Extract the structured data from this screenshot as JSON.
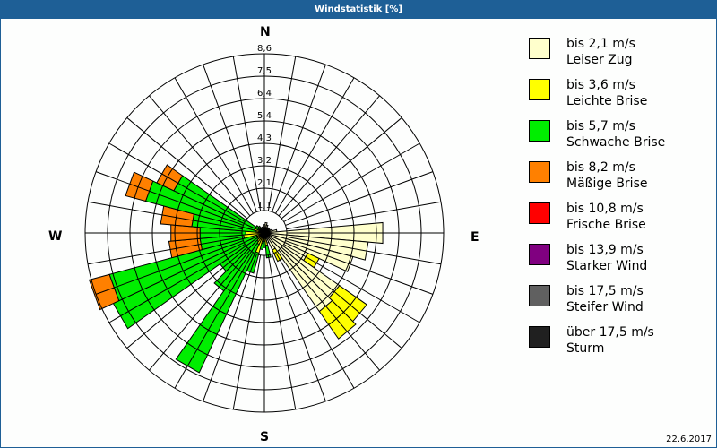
{
  "title": "Windstatistik [%]",
  "date": "22.6.2017",
  "compass": {
    "n": "N",
    "e": "E",
    "s": "S",
    "w": "W"
  },
  "legend": [
    {
      "range": "bis 2,1 m/s",
      "name": "Leiser Zug",
      "color": "#ffffcc"
    },
    {
      "range": "bis 3,6 m/s",
      "name": "Leichte Brise",
      "color": "#ffff00"
    },
    {
      "range": "bis 5,7 m/s",
      "name": "Schwache Brise",
      "color": "#00ee00"
    },
    {
      "range": "bis 8,2 m/s",
      "name": "Mäßige Brise",
      "color": "#ff8000"
    },
    {
      "range": "bis 10,8 m/s",
      "name": "Frische Brise",
      "color": "#ff0000"
    },
    {
      "range": "bis 13,9 m/s",
      "name": "Starker Wind",
      "color": "#800080"
    },
    {
      "range": "bis 17,5 m/s",
      "name": "Steifer Wind",
      "color": "#606060"
    },
    {
      "range": "über 17,5 m/s",
      "name": "Sturm",
      "color": "#202020"
    }
  ],
  "chart_data": {
    "type": "wind-rose",
    "title": "Windstatistik [%]",
    "ring_labels": [
      "1,1",
      "2,1",
      "3,2",
      "4,3",
      "5,4",
      "6,4",
      "7,5",
      "8,6"
    ],
    "rmax": 8.6,
    "sector_width_deg": 10,
    "series_names": [
      "Leiser Zug",
      "Leichte Brise",
      "Schwache Brise",
      "Mäßige Brise"
    ],
    "sectors": [
      {
        "dir": 10,
        "values": [
          0.5,
          0,
          0,
          0
        ]
      },
      {
        "dir": 20,
        "values": [
          0.4,
          0,
          0,
          0
        ]
      },
      {
        "dir": 30,
        "values": [
          0.3,
          0,
          0,
          0
        ]
      },
      {
        "dir": 40,
        "values": [
          0.3,
          0,
          0,
          0
        ]
      },
      {
        "dir": 50,
        "values": [
          0.3,
          0,
          0,
          0
        ]
      },
      {
        "dir": 60,
        "values": [
          0.3,
          0,
          0,
          0
        ]
      },
      {
        "dir": 70,
        "values": [
          0.4,
          0,
          0,
          0
        ]
      },
      {
        "dir": 80,
        "values": [
          0.6,
          0,
          0,
          0
        ]
      },
      {
        "dir": 90,
        "values": [
          5.7,
          0,
          0,
          0
        ]
      },
      {
        "dir": 100,
        "values": [
          5.0,
          0,
          0,
          0
        ]
      },
      {
        "dir": 110,
        "values": [
          4.4,
          0,
          0,
          0
        ]
      },
      {
        "dir": 120,
        "values": [
          2.3,
          0.6,
          0,
          0
        ]
      },
      {
        "dir": 130,
        "values": [
          4.4,
          1.6,
          0,
          0
        ]
      },
      {
        "dir": 140,
        "values": [
          4.6,
          1.6,
          0,
          0
        ]
      },
      {
        "dir": 150,
        "values": [
          0.9,
          0.6,
          0,
          0
        ]
      },
      {
        "dir": 160,
        "values": [
          0.5,
          0,
          0,
          0
        ]
      },
      {
        "dir": 170,
        "values": [
          0.3,
          0.3,
          0.6,
          0
        ]
      },
      {
        "dir": 180,
        "values": [
          0.2,
          0.2,
          0.3,
          0
        ]
      },
      {
        "dir": 190,
        "values": [
          0.2,
          0.3,
          0.3,
          0
        ]
      },
      {
        "dir": 200,
        "values": [
          0.1,
          0.9,
          1.0,
          0
        ]
      },
      {
        "dir": 210,
        "values": [
          0.1,
          0.5,
          6.8,
          0
        ]
      },
      {
        "dir": 220,
        "values": [
          0.1,
          0.4,
          2.9,
          0
        ]
      },
      {
        "dir": 230,
        "values": [
          0.1,
          0.3,
          2.2,
          0
        ]
      },
      {
        "dir": 240,
        "values": [
          0.1,
          0.3,
          7.6,
          0
        ]
      },
      {
        "dir": 250,
        "values": [
          0.1,
          0.3,
          7.3,
          1.0
        ]
      },
      {
        "dir": 260,
        "values": [
          0.2,
          0.8,
          2.1,
          1.5
        ]
      },
      {
        "dir": 270,
        "values": [
          0.1,
          0.8,
          2.2,
          1.4
        ]
      },
      {
        "dir": 280,
        "values": [
          0.1,
          0.3,
          3.1,
          1.5
        ]
      },
      {
        "dir": 290,
        "values": [
          0.2,
          0.3,
          5.4,
          1.0
        ]
      },
      {
        "dir": 300,
        "values": [
          0.1,
          0.2,
          4.5,
          0.9
        ]
      },
      {
        "dir": 310,
        "values": [
          0.1,
          0.1,
          0.3,
          0
        ]
      },
      {
        "dir": 320,
        "values": [
          0.1,
          0.1,
          0.2,
          0
        ]
      },
      {
        "dir": 330,
        "values": [
          0.2,
          0,
          0,
          0
        ]
      },
      {
        "dir": 340,
        "values": [
          0.3,
          0,
          0,
          0
        ]
      },
      {
        "dir": 350,
        "values": [
          0.3,
          0,
          0,
          0
        ]
      },
      {
        "dir": 0,
        "values": [
          0.4,
          0,
          0,
          0
        ]
      }
    ]
  }
}
